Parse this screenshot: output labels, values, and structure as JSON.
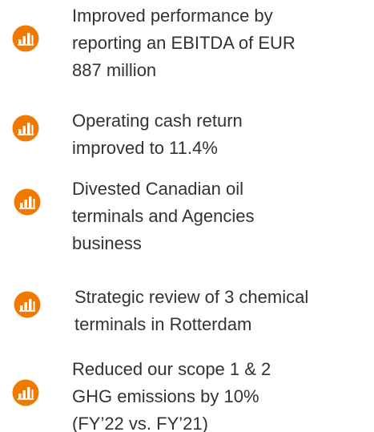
{
  "items": [
    {
      "lines": [
        "Improved performance by",
        "reporting an EBITDA of EUR",
        "887 million"
      ]
    },
    {
      "lines": [
        "Operating cash return",
        "improved to 11.4%"
      ]
    },
    {
      "lines": [
        "Divested Canadian oil",
        "terminals and Agencies",
        "business"
      ]
    },
    {
      "lines": [
        "Strategic review of 3 chemical",
        "terminals in Rotterdam"
      ]
    },
    {
      "lines": [
        "Reduced our scope 1 & 2",
        "GHG emissions by 10%",
        "(FY’22 vs. FY’21)"
      ]
    }
  ]
}
